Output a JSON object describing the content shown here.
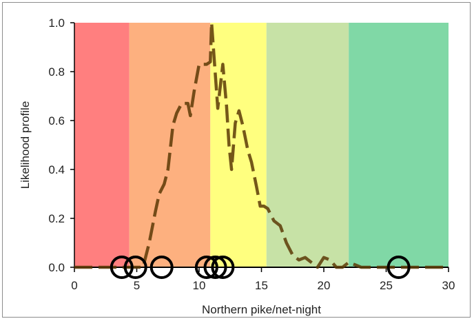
{
  "chart_data": {
    "type": "line",
    "title": "",
    "xlabel": "Northern pike/net-night",
    "ylabel": "Likelihood profile",
    "xlim": [
      0,
      30
    ],
    "ylim": [
      0,
      1
    ],
    "xticks": [
      0,
      5,
      10,
      15,
      20,
      25,
      30
    ],
    "xtick_labels": [
      "0",
      "5",
      "10",
      "15",
      "20",
      "25",
      "30"
    ],
    "yticks": [
      0,
      0.2,
      0.4,
      0.6,
      0.8,
      1.0
    ],
    "ytick_labels": [
      "0.0",
      "0.2",
      "0.4",
      "0.6",
      "0.8",
      "1.0"
    ],
    "grid": false,
    "legend": "none",
    "background_bands": [
      {
        "x0": 0,
        "x1": 4.4,
        "color": "#ff7f7f"
      },
      {
        "x0": 4.4,
        "x1": 10.9,
        "color": "#fdb07f"
      },
      {
        "x0": 10.9,
        "x1": 15.4,
        "color": "#ffff7f"
      },
      {
        "x0": 15.4,
        "x1": 22.0,
        "color": "#c7e2a6"
      },
      {
        "x0": 22.0,
        "x1": 30,
        "color": "#80d8a6"
      }
    ],
    "series": [
      {
        "style": "dashed",
        "color": "#5c3a06",
        "x": [
          0,
          5.5,
          6.0,
          6.5,
          6.8,
          7.2,
          7.5,
          7.9,
          8.2,
          8.6,
          9.1,
          9.3,
          9.6,
          10.0,
          10.3,
          10.6,
          10.9,
          11.0,
          11.5,
          11.9,
          12.2,
          12.4,
          12.6,
          12.9,
          13.2,
          13.5,
          13.9,
          14.2,
          14.6,
          14.9,
          15.2,
          15.5,
          16.0,
          16.5,
          17.0,
          17.5,
          18.0,
          18.5,
          19.0,
          19.5,
          20.0,
          20.5,
          21.0,
          21.5,
          22.0,
          22.5,
          23.0,
          24.0,
          25.0,
          26.0,
          27.0,
          28.0,
          29.0,
          30.0
        ],
        "y": [
          0,
          0.0,
          0.1,
          0.23,
          0.3,
          0.34,
          0.4,
          0.58,
          0.63,
          0.67,
          0.67,
          0.62,
          0.72,
          0.83,
          0.83,
          0.83,
          0.84,
          1.0,
          0.65,
          0.83,
          0.66,
          0.5,
          0.4,
          0.59,
          0.64,
          0.58,
          0.48,
          0.43,
          0.33,
          0.25,
          0.25,
          0.24,
          0.19,
          0.17,
          0.1,
          0.05,
          0.03,
          0.04,
          0.02,
          0.0,
          0.04,
          0.03,
          0.0,
          0.0,
          0.02,
          0.01,
          0.0,
          0.0,
          0.0,
          0.0,
          0.0,
          0.0,
          0.0,
          0.0
        ]
      }
    ],
    "observations": {
      "marker": "open-circle",
      "color": "#000000",
      "x": [
        3.8,
        4.9,
        7.0,
        10.6,
        11.3,
        11.9,
        26.0
      ],
      "y": [
        0,
        0,
        0,
        0,
        0,
        0,
        0
      ]
    }
  }
}
